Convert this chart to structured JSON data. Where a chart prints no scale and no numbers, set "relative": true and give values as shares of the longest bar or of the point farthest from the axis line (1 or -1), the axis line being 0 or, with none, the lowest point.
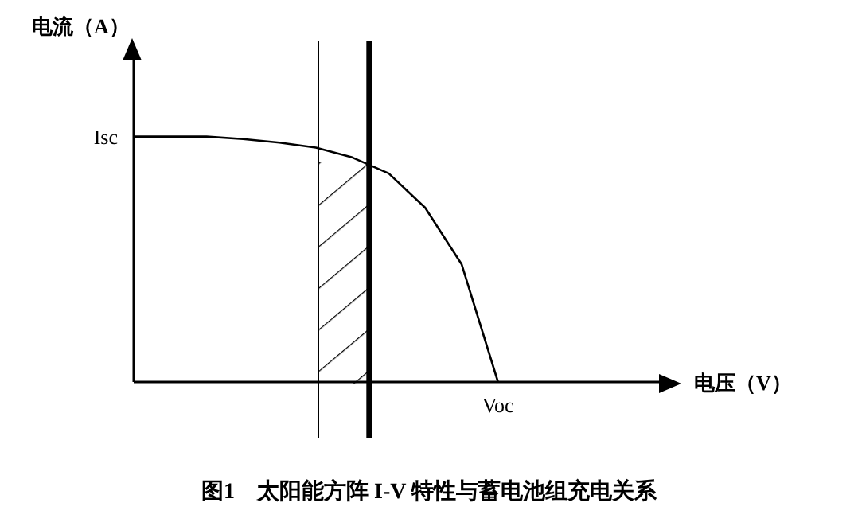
{
  "chart_data": {
    "type": "line",
    "title": "图1　太阳能方阵 I-V 特性与蓄电池组充电关系",
    "xlabel": "电压（V）",
    "ylabel": "电流（A）",
    "relative": true,
    "categories": [
      null,
      null,
      null,
      null,
      null,
      null,
      null,
      null,
      null,
      null,
      null,
      null,
      null,
      null,
      null
    ],
    "series": [
      {
        "color": "#000000",
        "values": [
          1,
          1,
          1,
          0.99,
          0.975,
          0.955,
          0.915,
          0.85,
          0.71,
          0.48,
          0,
          null,
          null,
          null,
          null
        ]
      }
    ],
    "annotations": [
      "Isc",
      "Voc"
    ],
    "marker": "none"
  }
}
